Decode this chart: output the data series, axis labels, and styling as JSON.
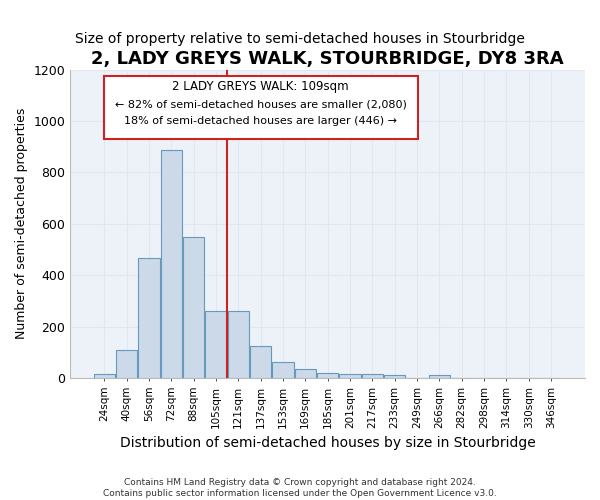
{
  "title": "2, LADY GREYS WALK, STOURBRIDGE, DY8 3RA",
  "subtitle": "Size of property relative to semi-detached houses in Stourbridge",
  "xlabel": "Distribution of semi-detached houses by size in Stourbridge",
  "ylabel": "Number of semi-detached properties",
  "footer1": "Contains HM Land Registry data © Crown copyright and database right 2024.",
  "footer2": "Contains public sector information licensed under the Open Government Licence v3.0.",
  "annotation_line1": "2 LADY GREYS WALK: 109sqm",
  "annotation_line2": "← 82% of semi-detached houses are smaller (2,080)",
  "annotation_line3": "18% of semi-detached houses are larger (446) →",
  "bar_categories": [
    "24sqm",
    "40sqm",
    "56sqm",
    "72sqm",
    "88sqm",
    "105sqm",
    "121sqm",
    "137sqm",
    "153sqm",
    "169sqm",
    "185sqm",
    "201sqm",
    "217sqm",
    "233sqm",
    "249sqm",
    "266sqm",
    "282sqm",
    "298sqm",
    "314sqm",
    "330sqm",
    "346sqm"
  ],
  "bar_values": [
    15,
    110,
    465,
    885,
    550,
    260,
    260,
    125,
    60,
    35,
    20,
    15,
    15,
    10,
    0,
    10,
    0,
    0,
    0,
    0,
    0
  ],
  "bar_color": "#ccd9e8",
  "bar_edge_color": "#6699bb",
  "vline_color": "#cc2222",
  "vline_x": 5.5,
  "ylim": [
    0,
    1200
  ],
  "yticks": [
    0,
    200,
    400,
    600,
    800,
    1000,
    1200
  ],
  "annotation_box_edge_color": "#cc2222",
  "grid_color": "#dde8f0",
  "background_color": "#edf2f8",
  "title_fontsize": 13,
  "subtitle_fontsize": 10,
  "ylabel_fontsize": 9,
  "xlabel_fontsize": 10
}
